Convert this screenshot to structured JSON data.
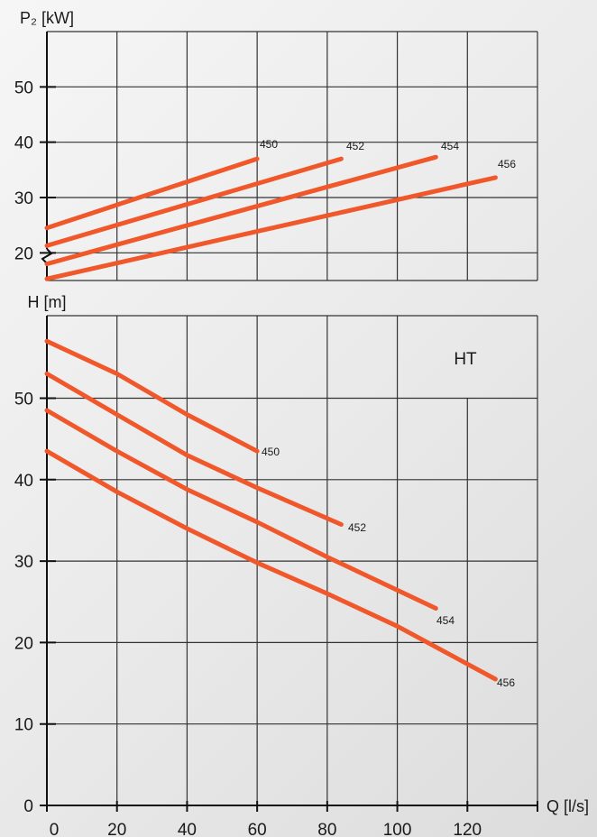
{
  "chart_data": [
    {
      "type": "line",
      "ylabel": "P₂ [kW]",
      "xlabel": "",
      "xlim": [
        0,
        140
      ],
      "ylim": [
        15,
        60
      ],
      "yticks": [
        20,
        30,
        40,
        50
      ],
      "grid": true,
      "line_color": "#f0572a",
      "series": [
        {
          "name": "450",
          "x": [
            0,
            60
          ],
          "y": [
            24.5,
            37.0
          ]
        },
        {
          "name": "452",
          "x": [
            0,
            84
          ],
          "y": [
            21.3,
            37.0
          ]
        },
        {
          "name": "454",
          "x": [
            0,
            111
          ],
          "y": [
            18.0,
            37.3
          ]
        },
        {
          "name": "456",
          "x": [
            0,
            128
          ],
          "y": [
            15.3,
            33.6
          ]
        }
      ]
    },
    {
      "type": "line",
      "ylabel": "H [m]",
      "xlabel": "Q [l/s]",
      "annotation": "HT",
      "xlim": [
        0,
        140
      ],
      "ylim": [
        0,
        60
      ],
      "xticks": [
        "0",
        "20",
        "40",
        "60",
        "80",
        "100",
        "120"
      ],
      "yticks": [
        0,
        10,
        20,
        30,
        40,
        50
      ],
      "grid": true,
      "line_color": "#f0572a",
      "series": [
        {
          "name": "450",
          "x": [
            0,
            20,
            40,
            60
          ],
          "y": [
            57.0,
            53.0,
            48.0,
            43.5
          ]
        },
        {
          "name": "452",
          "x": [
            0,
            20,
            40,
            60,
            84
          ],
          "y": [
            53.0,
            48.0,
            43.0,
            39.0,
            34.5
          ]
        },
        {
          "name": "454",
          "x": [
            0,
            20,
            40,
            60,
            80,
            111
          ],
          "y": [
            48.5,
            43.5,
            38.8,
            34.8,
            30.5,
            24.2
          ]
        },
        {
          "name": "456",
          "x": [
            0,
            20,
            40,
            60,
            80,
            100,
            128
          ],
          "y": [
            43.5,
            38.5,
            34.0,
            29.8,
            26.0,
            22.0,
            15.5
          ]
        }
      ]
    }
  ]
}
